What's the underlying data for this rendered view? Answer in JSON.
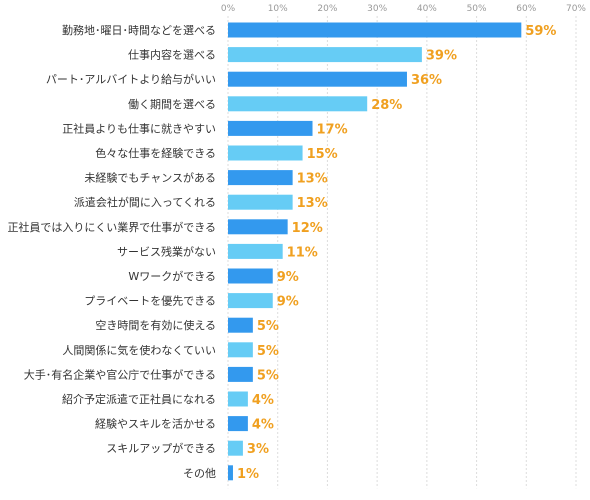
{
  "chart_data": {
    "type": "bar",
    "orientation": "horizontal",
    "categories": [
      "勤務地･曜日･時間などを選べる",
      "仕事内容を選べる",
      "パート･アルバイトより給与がいい",
      "働く期間を選べる",
      "正社員よりも仕事に就きやすい",
      "色々な仕事を経験できる",
      "未経験でもチャンスがある",
      "派遣会社が間に入ってくれる",
      "正社員では入りにくい業界で仕事ができる",
      "サービス残業がない",
      "Wワークができる",
      "プライベートを優先できる",
      "空き時間を有効に使える",
      "人間関係に気を使わなくていい",
      "大手･有名企業や官公庁で仕事ができる",
      "紹介予定派遣で正社員になれる",
      "経験やスキルを活かせる",
      "スキルアップができる",
      "その他"
    ],
    "values": [
      59,
      39,
      36,
      28,
      17,
      15,
      13,
      13,
      12,
      11,
      9,
      9,
      5,
      5,
      5,
      4,
      4,
      3,
      1
    ],
    "value_labels": [
      "59%",
      "39%",
      "36%",
      "28%",
      "17%",
      "15%",
      "13%",
      "13%",
      "12%",
      "11%",
      "9%",
      "9%",
      "5%",
      "5%",
      "5%",
      "4%",
      "4%",
      "3%",
      "1%"
    ],
    "ticks": [
      0,
      10,
      20,
      30,
      40,
      50,
      60,
      70
    ],
    "tick_labels": [
      "0%",
      "10%",
      "20%",
      "30%",
      "40%",
      "50%",
      "60%",
      "70%"
    ],
    "xlim": [
      0,
      70
    ],
    "title": "",
    "xlabel": "",
    "ylabel": "",
    "grid": true,
    "colors": {
      "bar_dark": "#3399ee",
      "bar_light": "#66ccf5",
      "value_label": "#f0a020",
      "category_label": "#333333",
      "tick_label": "#999999",
      "grid": "#dddddd"
    }
  }
}
